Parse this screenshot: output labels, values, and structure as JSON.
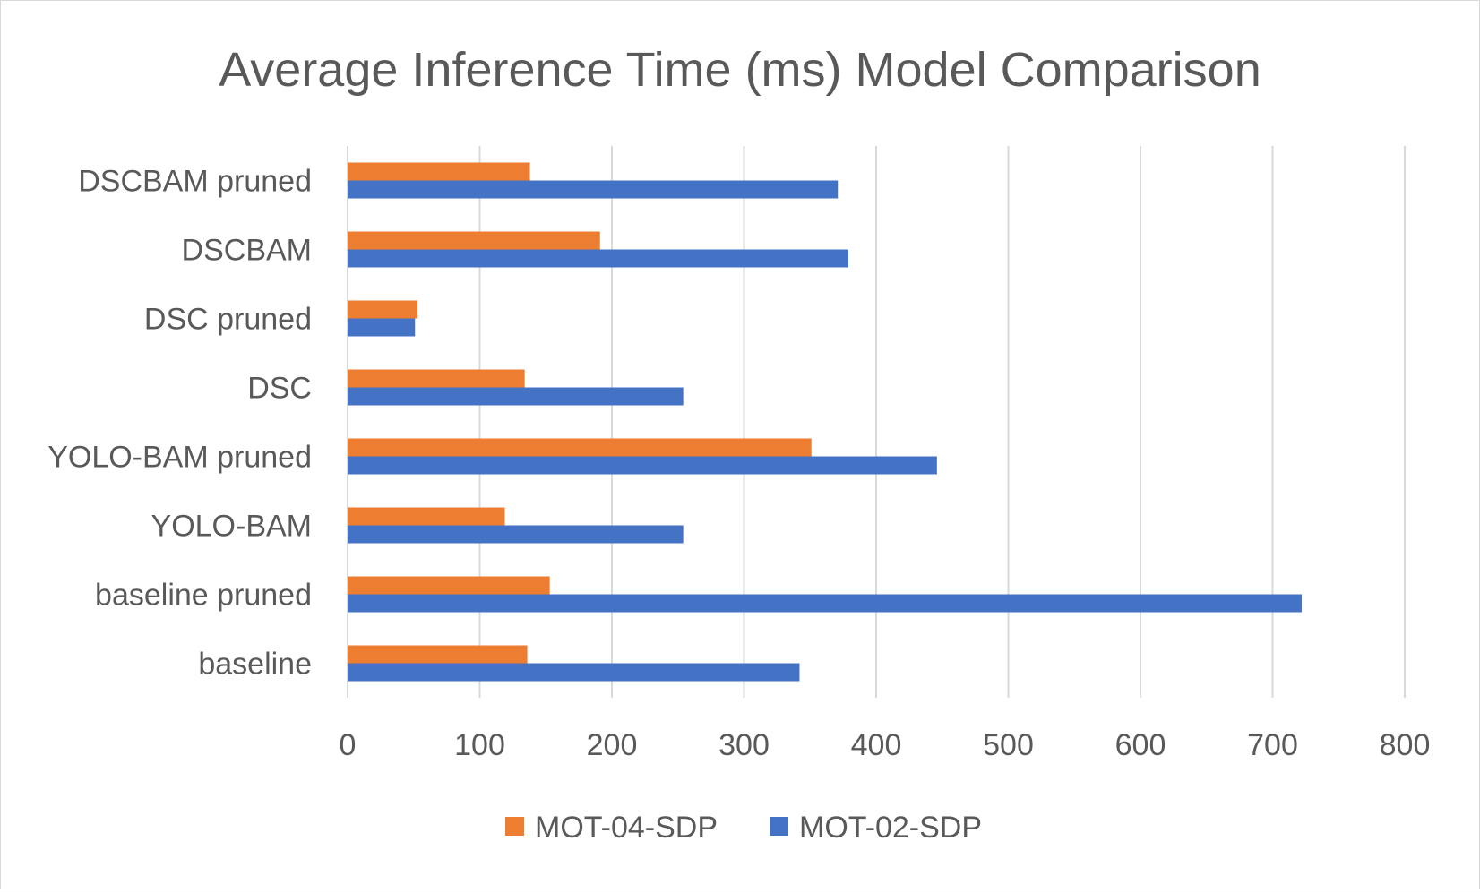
{
  "chart_data": {
    "type": "bar",
    "orientation": "horizontal",
    "title": "Average Inference Time (ms) Model Comparison",
    "xlabel": "",
    "ylabel": "",
    "categories": [
      "baseline",
      "baseline pruned",
      "YOLO-BAM",
      "YOLO-BAM pruned",
      "DSC",
      "DSC pruned",
      "DSCBAM",
      "DSCBAM pruned"
    ],
    "series": [
      {
        "name": "MOT-04-SDP",
        "color": "#ED7D31",
        "values": [
          136,
          153,
          119,
          351,
          134,
          53,
          191,
          138
        ]
      },
      {
        "name": "MOT-02-SDP",
        "color": "#4472C4",
        "values": [
          342,
          722,
          254,
          446,
          254,
          51,
          379,
          371
        ]
      }
    ],
    "xlim": [
      0,
      800
    ],
    "xticks": [
      0,
      100,
      200,
      300,
      400,
      500,
      600,
      700,
      800
    ],
    "grid": "vertical",
    "legend": "bottom"
  }
}
